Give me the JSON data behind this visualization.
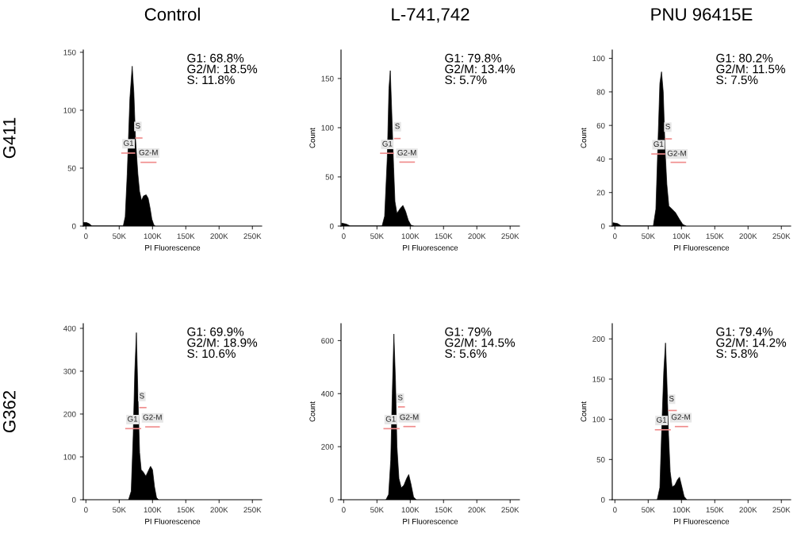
{
  "chart_data": [
    {
      "type": "area",
      "title": "Control",
      "xlabel": "PI Fluorescence",
      "ylabel": "G411",
      "xlim": [
        -4000,
        264000
      ],
      "xticks": [
        0,
        {
          "value": 50000,
          "label": "50K"
        },
        {
          "value": 100000,
          "label": "100K"
        },
        {
          "value": 150000,
          "label": "150K"
        },
        {
          "value": 200000,
          "label": "200K"
        },
        {
          "value": 250000,
          "label": "250K"
        }
      ],
      "ylim": [
        0,
        152
      ],
      "yticks": [
        0,
        50,
        100,
        150
      ],
      "grid": false,
      "series": [
        {
          "type": "area",
          "color": "#000000",
          "x": [
            -4000,
            1000,
            5000,
            9000,
            56000,
            59000,
            62000,
            66000,
            69500,
            72000,
            74500,
            78000,
            80500,
            83500,
            86500,
            90500,
            93500,
            96500,
            99000,
            102000,
            104000
          ],
          "values": [
            3,
            3,
            2,
            0,
            0,
            8,
            45,
            110,
            138,
            115,
            75,
            45,
            30,
            22,
            26,
            27,
            24,
            15,
            6,
            1,
            0
          ]
        },
        {
          "type": "line",
          "color": "#f08c8c",
          "x": [
            75000,
            84000
          ],
          "values": [
            76,
            76
          ]
        },
        {
          "type": "line",
          "color": "#f08c8c",
          "x": [
            54000,
            73000
          ],
          "values": [
            63,
            63
          ]
        },
        {
          "type": "line",
          "color": "#f08c8c",
          "x": [
            83000,
            105000
          ],
          "values": [
            55,
            55
          ]
        }
      ],
      "annotations": [
        "G1: 68.8%\nG2/M: 18.5%\nS: 11.8%",
        {
          "text": "S",
          "x": 78000,
          "y": 86
        },
        {
          "text": "G1",
          "x": 64000,
          "y": 71
        },
        {
          "text": "G2-M",
          "x": 94000,
          "y": 63
        }
      ]
    },
    {
      "type": "area",
      "title": "L-741,742",
      "xlabel": "PI Fluorescence",
      "ylabel": "Count",
      "xlim": [
        -4000,
        264000
      ],
      "xticks": [
        0,
        {
          "value": 50000,
          "label": "50K"
        },
        {
          "value": 100000,
          "label": "100K"
        },
        {
          "value": 150000,
          "label": "150K"
        },
        {
          "value": 200000,
          "label": "200K"
        },
        {
          "value": 250000,
          "label": "250K"
        }
      ],
      "ylim": [
        0,
        179
      ],
      "yticks": [
        0,
        50,
        100,
        150
      ],
      "grid": false,
      "series": [
        {
          "type": "area",
          "color": "#000000",
          "x": [
            -3000,
            4000,
            10000,
            57600,
            61500,
            65500,
            68000,
            70000,
            72000,
            75000,
            77000,
            80000,
            85000,
            89000,
            93000,
            97000,
            101000,
            105000
          ],
          "values": [
            3,
            2,
            0,
            0,
            10,
            70,
            140,
            158,
            120,
            60,
            25,
            13,
            18,
            21,
            15,
            6,
            1,
            0
          ]
        },
        {
          "type": "line",
          "color": "#f08c8c",
          "x": [
            76600,
            84600
          ],
          "values": [
            89,
            89
          ]
        },
        {
          "type": "line",
          "color": "#f08c8c",
          "x": [
            55600,
            74600
          ],
          "values": [
            74,
            74
          ]
        },
        {
          "type": "line",
          "color": "#f08c8c",
          "x": [
            84600,
            106000
          ],
          "values": [
            65,
            65
          ]
        }
      ],
      "annotations": [
        "G1: 79.8%\nG2/M: 13.4%\nS: 5.7%",
        {
          "text": "S",
          "x": 80600,
          "y": 101
        },
        {
          "text": "G1",
          "x": 65500,
          "y": 83
        },
        {
          "text": "G2-M",
          "x": 95000,
          "y": 74
        }
      ]
    },
    {
      "type": "area",
      "title": "PNU 96415E",
      "xlabel": "PI Fluorescence",
      "ylabel": "Count",
      "xlim": [
        -4000,
        264000
      ],
      "xticks": [
        0,
        {
          "value": 50000,
          "label": "50K"
        },
        {
          "value": 100000,
          "label": "100K"
        },
        {
          "value": 150000,
          "label": "150K"
        },
        {
          "value": 200000,
          "label": "200K"
        },
        {
          "value": 250000,
          "label": "250K"
        }
      ],
      "ylim": [
        0,
        105
      ],
      "yticks": [
        0,
        20,
        40,
        60,
        80,
        100
      ],
      "grid": false,
      "series": [
        {
          "type": "area",
          "color": "#000000",
          "x": [
            -3000,
            4000,
            10000,
            57600,
            61500,
            67500,
            70000,
            72600,
            75400,
            78000,
            81000,
            86000,
            91000,
            97000,
            102000,
            107000
          ],
          "values": [
            2,
            1.5,
            0,
            0,
            10,
            85,
            92,
            80,
            45,
            25,
            12,
            10,
            8,
            4,
            1,
            0
          ]
        },
        {
          "type": "line",
          "color": "#f08c8c",
          "x": [
            76000,
            84600
          ],
          "values": [
            52,
            52
          ]
        },
        {
          "type": "line",
          "color": "#f08c8c",
          "x": [
            55600,
            74600
          ],
          "values": [
            43,
            43
          ]
        },
        {
          "type": "line",
          "color": "#f08c8c",
          "x": [
            84600,
            106000
          ],
          "values": [
            38,
            38
          ]
        }
      ],
      "annotations": [
        "G1: 80.2%\nG2/M: 11.5%\nS: 7.5%",
        {
          "text": "S",
          "x": 79400,
          "y": 59
        },
        {
          "text": "G1",
          "x": 65500,
          "y": 48.5
        },
        {
          "text": "G2-M",
          "x": 93000,
          "y": 43
        }
      ]
    },
    {
      "type": "area",
      "xlabel": "PI Fluorescence",
      "ylabel": "G362",
      "xlim": [
        -4000,
        264000
      ],
      "xticks": [
        0,
        {
          "value": 50000,
          "label": "50K"
        },
        {
          "value": 100000,
          "label": "100K"
        },
        {
          "value": 150000,
          "label": "150K"
        },
        {
          "value": 200000,
          "label": "200K"
        },
        {
          "value": 250000,
          "label": "250K"
        }
      ],
      "ylim": [
        0,
        411
      ],
      "yticks": [
        0,
        100,
        200,
        300,
        400
      ],
      "grid": false,
      "series": [
        {
          "type": "area",
          "color": "#000000",
          "x": [
            64000,
            68000,
            71000,
            73400,
            75800,
            78000,
            80600,
            83000,
            86000,
            90000,
            93000,
            97000,
            100000,
            103000,
            106000,
            109000
          ],
          "values": [
            0,
            20,
            150,
            300,
            390,
            250,
            110,
            70,
            65,
            55,
            65,
            78,
            70,
            30,
            5,
            0
          ]
        },
        {
          "type": "line",
          "color": "#f08c8c",
          "x": [
            81000,
            90000
          ],
          "values": [
            215,
            215
          ]
        },
        {
          "type": "line",
          "color": "#f08c8c",
          "x": [
            60000,
            82000
          ],
          "values": [
            166,
            166
          ]
        },
        {
          "type": "line",
          "color": "#f08c8c",
          "x": [
            90000,
            110000
          ],
          "values": [
            170,
            170
          ]
        }
      ],
      "annotations": [
        "G1: 69.9%\nG2/M: 18.9%\nS: 10.6%",
        {
          "text": "S",
          "x": 84000,
          "y": 241
        },
        {
          "text": "G1",
          "x": 70000,
          "y": 187
        },
        {
          "text": "G2-M",
          "x": 100000,
          "y": 191
        }
      ]
    },
    {
      "type": "area",
      "xlabel": "PI Fluorescence",
      "ylabel": "Count",
      "xlim": [
        -4000,
        264000
      ],
      "xticks": [
        0,
        {
          "value": 50000,
          "label": "50K"
        },
        {
          "value": 100000,
          "label": "100K"
        },
        {
          "value": 150000,
          "label": "150K"
        },
        {
          "value": 200000,
          "label": "200K"
        },
        {
          "value": 250000,
          "label": "250K"
        }
      ],
      "ylim": [
        0,
        664
      ],
      "yticks": [
        0,
        200,
        400,
        600
      ],
      "grid": false,
      "series": [
        {
          "type": "area",
          "color": "#000000",
          "x": [
            63500,
            67500,
            70700,
            73000,
            75400,
            77800,
            80000,
            83000,
            86500,
            90500,
            94500,
            97700,
            101000,
            105000,
            109000
          ],
          "values": [
            0,
            20,
            150,
            400,
            625,
            450,
            200,
            80,
            45,
            55,
            80,
            95,
            60,
            10,
            0
          ]
        },
        {
          "type": "line",
          "color": "#f08c8c",
          "x": [
            82600,
            91000
          ],
          "values": [
            350,
            350
          ]
        },
        {
          "type": "line",
          "color": "#f08c8c",
          "x": [
            60700,
            83000
          ],
          "values": [
            268,
            268
          ]
        },
        {
          "type": "line",
          "color": "#f08c8c",
          "x": [
            90500,
            107000
          ],
          "values": [
            276,
            276
          ]
        }
      ],
      "annotations": [
        "G1: 79%\nG2/M: 14.5%\nS: 5.6%",
        {
          "text": "S",
          "x": 85000,
          "y": 383
        },
        {
          "text": "G1",
          "x": 70700,
          "y": 302
        },
        {
          "text": "G2-M",
          "x": 98500,
          "y": 309
        }
      ]
    },
    {
      "type": "area",
      "xlabel": "PI Fluorescence",
      "ylabel": "Count",
      "xlim": [
        -4000,
        264000
      ],
      "xticks": [
        0,
        {
          "value": 50000,
          "label": "50K"
        },
        {
          "value": 100000,
          "label": "100K"
        },
        {
          "value": 150000,
          "label": "150K"
        },
        {
          "value": 200000,
          "label": "200K"
        },
        {
          "value": 250000,
          "label": "250K"
        }
      ],
      "ylim": [
        0,
        219
      ],
      "yticks": [
        0,
        50,
        100,
        150,
        200
      ],
      "grid": false,
      "series": [
        {
          "type": "area",
          "color": "#000000",
          "x": [
            63500,
            67500,
            70000,
            73400,
            76000,
            78000,
            80600,
            83000,
            86000,
            90000,
            94000,
            97000,
            100000,
            104000,
            108000
          ],
          "values": [
            0,
            15,
            80,
            160,
            195,
            150,
            80,
            35,
            16,
            18,
            25,
            28,
            18,
            4,
            0
          ]
        },
        {
          "type": "line",
          "color": "#f08c8c",
          "x": [
            81000,
            92000
          ],
          "values": [
            111,
            111
          ]
        },
        {
          "type": "line",
          "color": "#f08c8c",
          "x": [
            61000,
            83000
          ],
          "values": [
            87,
            87
          ]
        },
        {
          "type": "line",
          "color": "#f08c8c",
          "x": [
            91000,
            109000
          ],
          "values": [
            91,
            91
          ]
        }
      ],
      "annotations": [
        "G1: 79.4%\nG2/M: 14.2%\nS: 5.8%",
        {
          "text": "S",
          "x": 85000,
          "y": 125
        },
        {
          "text": "G1",
          "x": 70000,
          "y": 98.5
        },
        {
          "text": "G2-M",
          "x": 99000,
          "y": 102
        }
      ]
    }
  ]
}
